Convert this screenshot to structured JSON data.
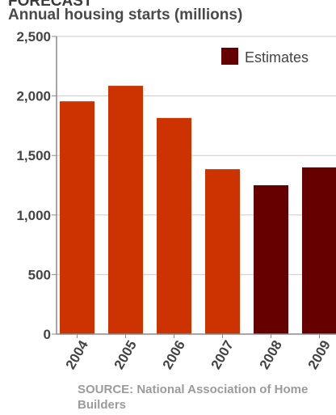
{
  "header": {
    "heading": "FORECAST",
    "subtitle": "Annual housing starts (millions)"
  },
  "source": "SOURCE: National Association of Home Builders",
  "colors": {
    "actual": "#cc3300",
    "estimate": "#660000",
    "axis": "#8a8a8a",
    "grid": "#cccccc",
    "text": "#444444"
  },
  "chart_data": {
    "type": "bar",
    "title": "Annual housing starts (millions)",
    "categories": [
      "2004",
      "2005",
      "2006",
      "2007",
      "2008",
      "2009"
    ],
    "values": [
      1955,
      2085,
      1815,
      1385,
      1250,
      1400
    ],
    "estimate_flags": [
      false,
      false,
      false,
      false,
      true,
      true
    ],
    "legend": [
      {
        "label": "Estimates",
        "color": "#660000"
      }
    ],
    "legend_position": "top-right",
    "ylim": [
      0,
      2500
    ],
    "yticks": [
      0,
      500,
      1000,
      1500,
      2000,
      2500
    ],
    "ytick_labels": [
      "0",
      "500",
      "1,000",
      "1,500",
      "2,000",
      "2,500"
    ],
    "grid": true
  }
}
